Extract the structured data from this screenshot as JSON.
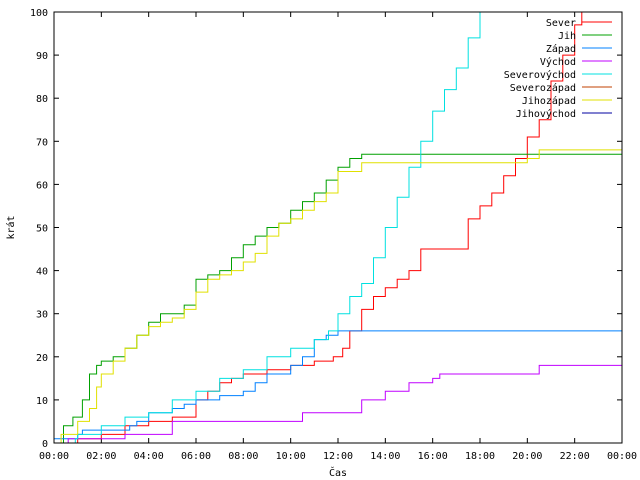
{
  "chart_data": {
    "type": "line",
    "title": "",
    "xlabel": "Čas",
    "ylabel": "krát",
    "x_unit": "hours",
    "xlim": [
      0,
      24
    ],
    "ylim": [
      0,
      100
    ],
    "xticks": [
      {
        "value": 0,
        "label": "00:00"
      },
      {
        "value": 2,
        "label": "02:00"
      },
      {
        "value": 4,
        "label": "04:00"
      },
      {
        "value": 6,
        "label": "06:00"
      },
      {
        "value": 8,
        "label": "08:00"
      },
      {
        "value": 10,
        "label": "10:00"
      },
      {
        "value": 12,
        "label": "12:00"
      },
      {
        "value": 14,
        "label": "14:00"
      },
      {
        "value": 16,
        "label": "16:00"
      },
      {
        "value": 18,
        "label": "18:00"
      },
      {
        "value": 20,
        "label": "20:00"
      },
      {
        "value": 22,
        "label": "22:00"
      },
      {
        "value": 24,
        "label": "00:00"
      }
    ],
    "yticks": [
      0,
      10,
      20,
      30,
      40,
      50,
      60,
      70,
      80,
      90,
      100
    ],
    "grid": false,
    "legend_position": "top-right",
    "series": [
      {
        "name": "Sever",
        "color": "#ff0000",
        "x": [
          0.4,
          1.0,
          2.0,
          3.0,
          4.0,
          5.0,
          6.0,
          6.5,
          7.0,
          7.5,
          8.0,
          9.0,
          10.0,
          11.0,
          11.8,
          12.2,
          12.5,
          13.0,
          13.5,
          14.0,
          14.5,
          15.0,
          15.5,
          16.0,
          16.8,
          17.5,
          18.0,
          18.5,
          19.0,
          19.5,
          20.0,
          20.5,
          21.0,
          21.5,
          22.0,
          22.3
        ],
        "y": [
          0,
          1,
          2,
          4,
          5,
          6,
          10,
          12,
          14,
          15,
          16,
          17,
          18,
          19,
          20,
          22,
          26,
          31,
          34,
          36,
          38,
          40,
          45,
          45,
          45,
          52,
          55,
          58,
          62,
          66,
          71,
          75,
          84,
          90,
          97,
          100
        ]
      },
      {
        "name": "Jih",
        "color": "#00a000",
        "x": [
          0,
          0.4,
          0.8,
          1.2,
          1.5,
          1.8,
          2.0,
          2.5,
          3.0,
          3.5,
          4.0,
          4.5,
          5.0,
          5.5,
          6.0,
          6.5,
          7.0,
          7.5,
          8.0,
          8.5,
          9.0,
          9.5,
          10.0,
          10.5,
          11.0,
          11.5,
          12.0,
          12.5,
          13.0,
          24.0
        ],
        "y": [
          0,
          4,
          6,
          10,
          16,
          18,
          19,
          20,
          22,
          25,
          28,
          30,
          30,
          32,
          38,
          39,
          40,
          43,
          46,
          48,
          50,
          51,
          54,
          56,
          58,
          61,
          64,
          66,
          67,
          67
        ]
      },
      {
        "name": "Západ",
        "color": "#0080ff",
        "x": [
          0,
          1.0,
          1.2,
          2.5,
          3.2,
          3.5,
          4.0,
          5.0,
          5.5,
          6.0,
          7.0,
          8.0,
          8.5,
          9.0,
          10.0,
          10.5,
          11.0,
          11.5,
          12.0,
          12.5,
          24.0
        ],
        "y": [
          1,
          2,
          3,
          3,
          4,
          5,
          7,
          8,
          9,
          10,
          11,
          12,
          14,
          16,
          18,
          20,
          24,
          25,
          26,
          26,
          26
        ]
      },
      {
        "name": "Východ",
        "color": "#c000ff",
        "x": [
          0,
          0.6,
          2.5,
          3.0,
          4.0,
          5.0,
          8.0,
          9.0,
          10.0,
          10.5,
          11.0,
          12.0,
          13.0,
          14.0,
          15.0,
          16.0,
          16.3,
          18.0,
          20.0,
          20.5,
          24.0
        ],
        "y": [
          0,
          1,
          1,
          2,
          2,
          5,
          5,
          5,
          5,
          7,
          7,
          7,
          10,
          12,
          14,
          15,
          16,
          16,
          16,
          18,
          18
        ]
      },
      {
        "name": "Severovýchod",
        "color": "#00e0e0",
        "x": [
          0,
          0.9,
          1.0,
          2.0,
          3.0,
          4.0,
          5.0,
          6.0,
          7.0,
          8.0,
          9.0,
          10.0,
          11.0,
          11.6,
          12.0,
          12.5,
          13.0,
          13.5,
          14.0,
          14.5,
          15.0,
          15.5,
          16.0,
          16.5,
          17.0,
          17.5,
          18.0
        ],
        "y": [
          0,
          1,
          2,
          4,
          6,
          7,
          10,
          12,
          15,
          17,
          20,
          22,
          24,
          26,
          30,
          34,
          37,
          43,
          50,
          57,
          64,
          70,
          77,
          82,
          87,
          94,
          100
        ]
      },
      {
        "name": "Severozápad",
        "color": "#c04000",
        "x": [
          0,
          24
        ],
        "y": [
          0,
          0
        ]
      },
      {
        "name": "Jihozápad",
        "color": "#e0e000",
        "x": [
          0,
          0.3,
          1.0,
          1.5,
          1.8,
          2.0,
          2.5,
          3.0,
          3.5,
          4.0,
          4.5,
          5.0,
          5.5,
          6.0,
          6.5,
          7.0,
          7.5,
          8.0,
          8.5,
          9.0,
          9.5,
          10.0,
          10.5,
          11.0,
          11.5,
          12.0,
          12.5,
          13.0,
          19.5,
          20.0,
          20.5,
          24.0
        ],
        "y": [
          0,
          2,
          5,
          8,
          13,
          16,
          19,
          22,
          25,
          27,
          28,
          29,
          31,
          35,
          38,
          39,
          40,
          42,
          44,
          48,
          51,
          52,
          54,
          56,
          58,
          63,
          63,
          65,
          65,
          66,
          68,
          68
        ]
      },
      {
        "name": "Jihovýchod",
        "color": "#0000a0",
        "x": [
          0,
          24
        ],
        "y": [
          0,
          0
        ]
      }
    ]
  }
}
